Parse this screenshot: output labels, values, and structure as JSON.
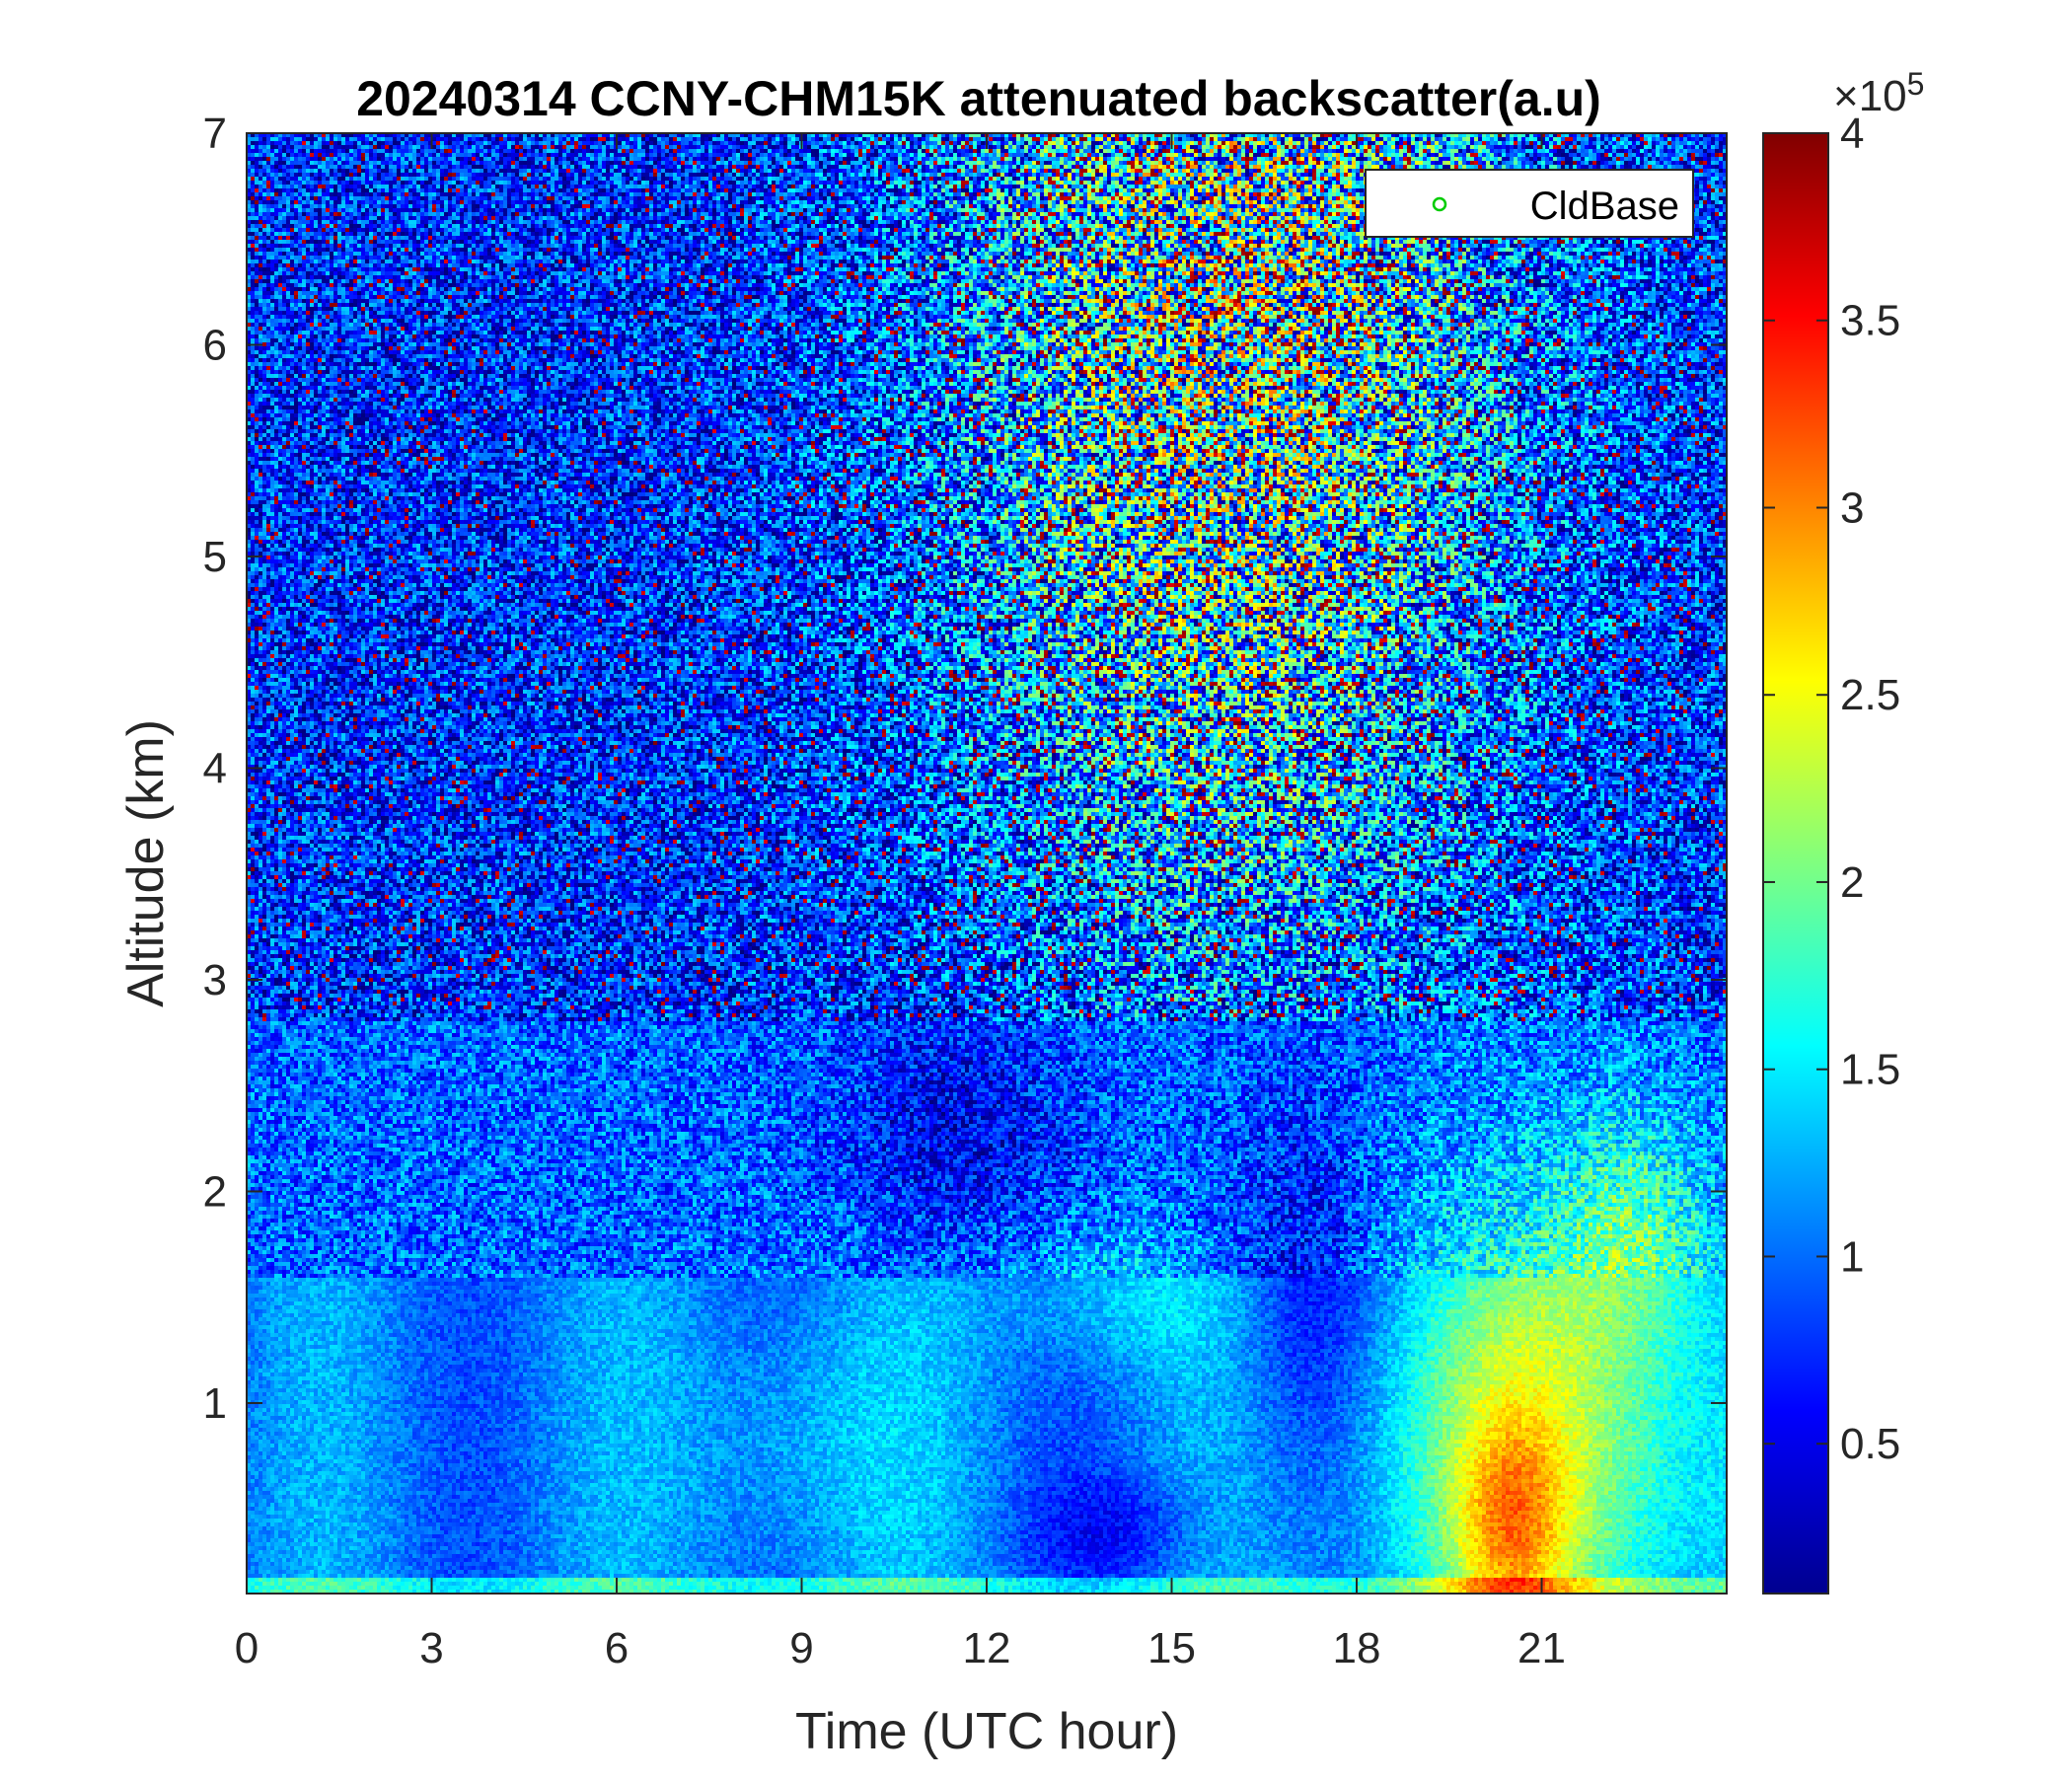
{
  "chart_data": {
    "type": "heatmap",
    "title": "20240314 CCNY-CHM15K attenuated backscatter(a.u)",
    "xlabel": "Time (UTC hour)",
    "ylabel": "Altitude (km)",
    "x_range": [
      0,
      24
    ],
    "y_range": [
      0.1,
      7
    ],
    "x_ticks": [
      "0",
      "3",
      "6",
      "9",
      "12",
      "15",
      "18",
      "21"
    ],
    "x_tick_values": [
      0,
      3,
      6,
      9,
      12,
      15,
      18,
      21
    ],
    "y_ticks": [
      "1",
      "2",
      "3",
      "4",
      "5",
      "6",
      "7"
    ],
    "y_tick_values": [
      1,
      2,
      3,
      4,
      5,
      6,
      7
    ],
    "colorbar": {
      "range": [
        0.1,
        4
      ],
      "ticks": [
        "0.5",
        "1",
        "1.5",
        "2",
        "2.5",
        "3",
        "3.5",
        "4"
      ],
      "tick_values": [
        0.5,
        1,
        1.5,
        2,
        2.5,
        3,
        3.5,
        4
      ],
      "scale_base": "×10",
      "scale_exponent": "5",
      "colormap": "jet"
    },
    "legend": {
      "entries": [
        {
          "name": "CldBase",
          "marker": "circle",
          "color": "#00cc00"
        }
      ],
      "placement": "top-right"
    },
    "grid": false
  }
}
